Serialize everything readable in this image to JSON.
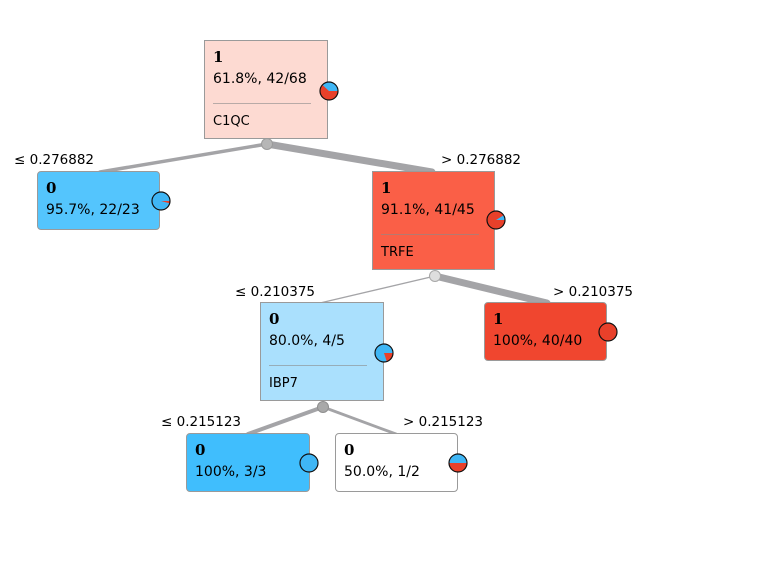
{
  "tree": {
    "nodes": [
      {
        "id": "root",
        "class": "1",
        "stat": "61.8%, 42/68",
        "feature": "C1QC",
        "color": "#fddad2",
        "red_fraction": 0.618
      },
      {
        "id": "n-left",
        "class": "0",
        "stat": "95.7%, 22/23",
        "feature": "",
        "color": "#54c5fd",
        "red_fraction": 0.043
      },
      {
        "id": "n-trfe",
        "class": "1",
        "stat": "91.1%, 41/45",
        "feature": "TRFE",
        "color": "#fa5f47",
        "red_fraction": 0.911
      },
      {
        "id": "n-ibp7",
        "class": "0",
        "stat": "80.0%, 4/5",
        "feature": "IBP7",
        "color": "#aae0fd",
        "red_fraction": 0.2
      },
      {
        "id": "n-right",
        "class": "1",
        "stat": "100%, 40/40",
        "feature": "",
        "color": "#f0462f",
        "red_fraction": 1.0
      },
      {
        "id": "n-ll",
        "class": "0",
        "stat": "100%, 3/3",
        "feature": "",
        "color": "#40befd",
        "red_fraction": 0.0
      },
      {
        "id": "n-lr",
        "class": "0",
        "stat": "50.0%, 1/2",
        "feature": "",
        "color": "#ffffff",
        "red_fraction": 0.5
      }
    ],
    "split_labels": {
      "root_left": "≤ 0.276882",
      "root_right": "> 0.276882",
      "trfe_left": "≤ 0.210375",
      "trfe_right": "> 0.210375",
      "ibp7_left": "≤ 0.215123",
      "ibp7_right": "> 0.215123"
    },
    "colors": {
      "class_0": "#3fb6f5",
      "class_1": "#e8402a",
      "edge": "#a3a3a3"
    }
  }
}
